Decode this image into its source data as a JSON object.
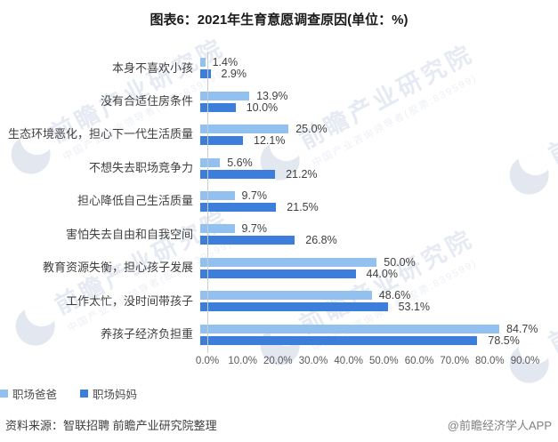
{
  "title": "图表6：2021年生育意愿调查原因(单位：%)",
  "chart_data": {
    "type": "bar",
    "orientation": "horizontal",
    "unit": "%",
    "categories": [
      "本身不喜欢小孩",
      "没有合适住房条件",
      "生态环境恶化，担心下一代生活质量",
      "不想失去职场竞争力",
      "担心降低自己生活质量",
      "害怕失去自由和自我空间",
      "教育资源失衡，担心孩子发展",
      "工作太忙，没时间带孩子",
      "养孩子经济负担重"
    ],
    "series": [
      {
        "name": "职场爸爸",
        "color": "#92C1F0",
        "values": [
          1.4,
          13.9,
          25.0,
          5.6,
          9.7,
          9.7,
          50.0,
          48.6,
          84.7
        ]
      },
      {
        "name": "职场妈妈",
        "color": "#3E7EDB",
        "values": [
          2.9,
          10.0,
          12.1,
          21.2,
          21.5,
          26.8,
          44.0,
          53.1,
          78.5
        ]
      }
    ],
    "xlim": [
      0,
      90
    ],
    "x_ticks": [
      "0.0%",
      "10.0%",
      "20.0%",
      "30.0%",
      "40.0%",
      "50.0%",
      "60.0%",
      "70.0%",
      "80.0%",
      "90.0%"
    ],
    "legend_position": "bottom",
    "grid": false
  },
  "footer": {
    "source": "资料来源：智联招聘 前瞻产业研究院整理",
    "credit": "@前瞻经济学人APP"
  },
  "watermark": {
    "brand": "前瞻产业研究院",
    "tagline": "中国产业咨询领导者(股票:839599)"
  }
}
